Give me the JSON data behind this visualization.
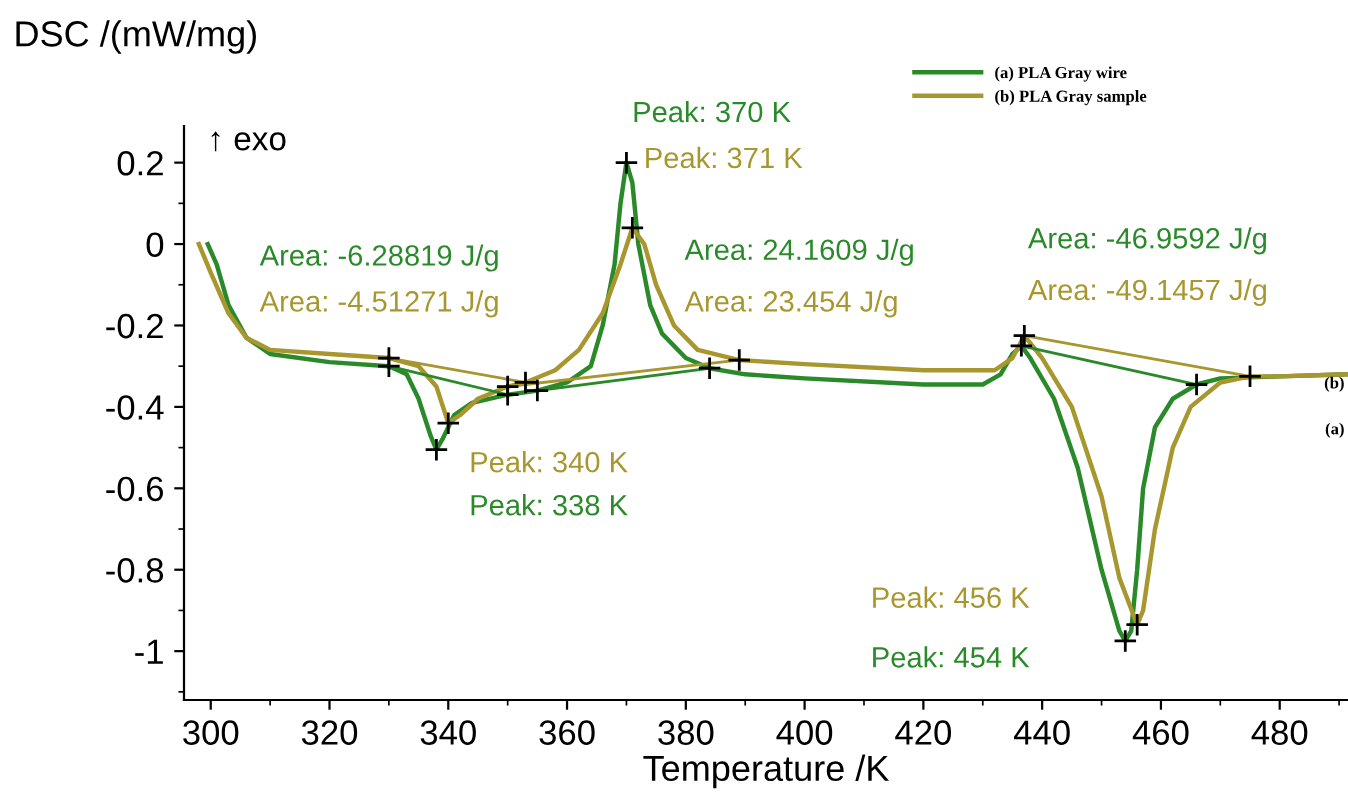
{
  "chart_data": {
    "type": "line",
    "xlabel": "Temperature /K",
    "ylabel": "DSC /(mW/mg)",
    "xlim": [
      295.5,
      491.5
    ],
    "ylim": [
      -1.12,
      0.29
    ],
    "xticks": [
      300,
      320,
      340,
      360,
      380,
      400,
      420,
      440,
      460,
      480
    ],
    "yticks": [
      0.2,
      0,
      -0.2,
      -0.4,
      -0.6,
      -0.8,
      -1
    ],
    "grid": false,
    "legend": "top right",
    "marker": "none",
    "line_style": "solid",
    "series": [
      {
        "name": "(a) PLA Gray wire",
        "color": "#2a8a2a",
        "x": [
          299.5,
          301,
          303,
          306,
          310,
          320,
          330,
          333,
          335,
          337,
          338,
          339,
          341,
          344,
          350,
          355,
          360,
          364,
          366,
          368,
          369,
          370,
          371,
          372,
          374,
          376,
          380,
          384,
          390,
          400,
          420,
          430,
          433,
          435,
          436.5,
          438,
          442,
          446,
          450,
          453,
          454,
          455,
          456,
          457,
          459,
          462,
          466,
          470,
          480,
          491.5
        ],
        "values": [
          0,
          -0.05,
          -0.15,
          -0.23,
          -0.27,
          -0.29,
          -0.3,
          -0.32,
          -0.38,
          -0.47,
          -0.505,
          -0.48,
          -0.42,
          -0.39,
          -0.37,
          -0.36,
          -0.34,
          -0.3,
          -0.2,
          -0.05,
          0.1,
          0.2,
          0.15,
          0,
          -0.15,
          -0.22,
          -0.28,
          -0.305,
          -0.32,
          -0.33,
          -0.345,
          -0.345,
          -0.32,
          -0.27,
          -0.25,
          -0.28,
          -0.38,
          -0.55,
          -0.8,
          -0.95,
          -0.975,
          -0.95,
          -0.8,
          -0.6,
          -0.45,
          -0.38,
          -0.345,
          -0.33,
          -0.325,
          -0.32
        ]
      },
      {
        "name": "(b) PLA Gray sample",
        "color": "#a8962e",
        "x": [
          298,
          300,
          303,
          306,
          310,
          320,
          330,
          335,
          338,
          340,
          342,
          345,
          350,
          353,
          358,
          362,
          366,
          369,
          371,
          373,
          375,
          378,
          382,
          389,
          400,
          420,
          432,
          435,
          437,
          440,
          445,
          450,
          453,
          456,
          457,
          459,
          462,
          465,
          470,
          475,
          480,
          491.5
        ],
        "values": [
          0,
          -0.07,
          -0.17,
          -0.23,
          -0.26,
          -0.27,
          -0.28,
          -0.3,
          -0.35,
          -0.44,
          -0.42,
          -0.38,
          -0.35,
          -0.34,
          -0.31,
          -0.26,
          -0.17,
          -0.05,
          0.04,
          0,
          -0.1,
          -0.2,
          -0.26,
          -0.285,
          -0.295,
          -0.31,
          -0.31,
          -0.28,
          -0.225,
          -0.28,
          -0.4,
          -0.62,
          -0.82,
          -0.935,
          -0.9,
          -0.7,
          -0.5,
          -0.4,
          -0.34,
          -0.325,
          -0.325,
          -0.32
        ]
      },
      {
        "color": "#2a8a2a",
        "x": [
          330,
          350
        ],
        "values": [
          -0.3,
          -0.37
        ]
      },
      {
        "color": "#2a8a2a",
        "x": [
          355,
          384
        ],
        "values": [
          -0.36,
          -0.305
        ]
      },
      {
        "color": "#2a8a2a",
        "x": [
          436.5,
          466
        ],
        "values": [
          -0.25,
          -0.345
        ]
      },
      {
        "color": "#a8962e",
        "x": [
          330,
          353
        ],
        "values": [
          -0.28,
          -0.34
        ]
      },
      {
        "color": "#a8962e",
        "x": [
          350,
          389
        ],
        "values": [
          -0.35,
          -0.285
        ]
      },
      {
        "color": "#a8962e",
        "x": [
          437,
          475
        ],
        "values": [
          -0.225,
          -0.325
        ]
      },
      {
        "type": "scatter",
        "color": "#000000",
        "marker": "cross",
        "x": [
          330,
          350,
          355,
          384,
          436.5,
          466,
          330,
          353,
          350,
          389,
          437,
          475,
          338,
          370,
          454,
          340,
          371,
          456
        ],
        "values": [
          -0.3,
          -0.37,
          -0.36,
          -0.305,
          -0.25,
          -0.345,
          -0.28,
          -0.34,
          -0.35,
          -0.285,
          -0.225,
          -0.325,
          -0.505,
          0.2,
          -0.975,
          -0.44,
          0.04,
          -0.935
        ]
      }
    ],
    "annotations": [
      "↑ exo",
      "Peak: 338 K",
      "Peak: 340 K",
      "Peak: 370 K",
      "Peak: 371 K",
      "Peak: 454 K",
      "Peak: 456 K",
      "Area: -6.28819 J/g",
      "Area: -4.51271 J/g",
      "Area: 24.1609 J/g",
      "Area: 23.454 J/g",
      "Area: -46.9592 J/g",
      "Area: -49.1457 J/g",
      "(b)",
      "(a)"
    ]
  }
}
